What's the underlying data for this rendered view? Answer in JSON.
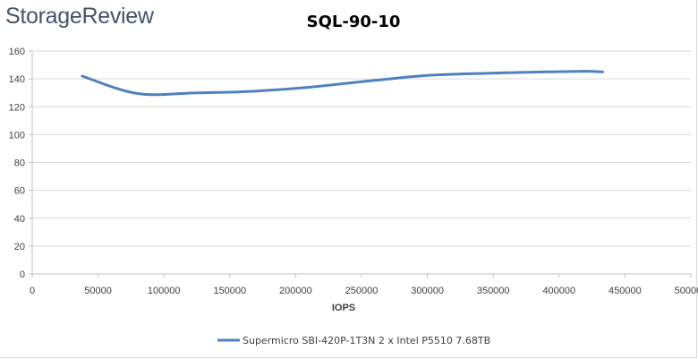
{
  "logo_text": "StorageReview",
  "chart_data": {
    "type": "line",
    "title": "SQL-90-10",
    "xlabel": "IOPS",
    "ylabel": "",
    "xlim": [
      0,
      500000
    ],
    "ylim": [
      0,
      160
    ],
    "x_ticks": [
      0,
      50000,
      100000,
      150000,
      200000,
      250000,
      300000,
      350000,
      400000,
      450000,
      500000
    ],
    "x_tick_labels": [
      "0",
      "50000",
      "100000",
      "150000",
      "200000",
      "250000",
      "300000",
      "350000",
      "400000",
      "450000",
      "500000"
    ],
    "y_ticks": [
      0,
      20,
      40,
      60,
      80,
      100,
      120,
      140,
      160
    ],
    "y_tick_labels": [
      "0",
      "20",
      "40",
      "60",
      "80",
      "100",
      "120",
      "140",
      "160"
    ],
    "grid": true,
    "legend_position": "bottom",
    "series": [
      {
        "name": "Supermicro SBI-420P-1T3N 2 x Intel P5510 7.68TB",
        "color": "#4f81bd",
        "x": [
          38000,
          80000,
          125000,
          165000,
          210000,
          255000,
          300000,
          345000,
          390000,
          420000,
          433000
        ],
        "y": [
          142,
          129.5,
          130,
          131,
          134,
          138.5,
          142.5,
          144,
          145,
          145.5,
          145
        ]
      }
    ]
  }
}
